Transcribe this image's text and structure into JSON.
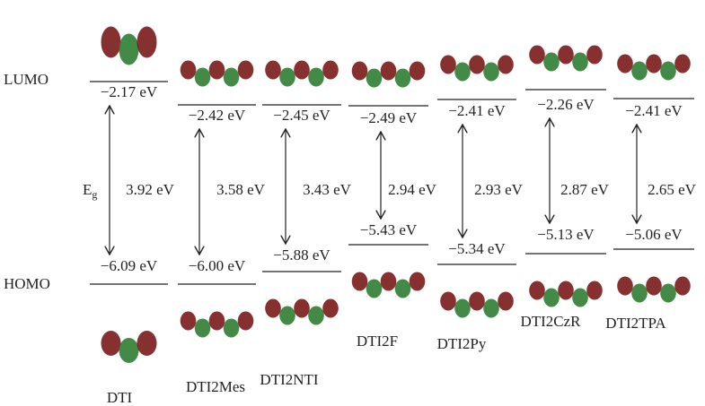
{
  "row_labels": {
    "lumo": "LUMO",
    "homo": "HOMO"
  },
  "gap_label": {
    "main": "E",
    "sub": "g"
  },
  "molecules": [
    {
      "name": "DTI",
      "lumo": "−2.17 eV",
      "homo": "−6.09 eV",
      "gap": "3.92 eV"
    },
    {
      "name": "DTI2Mes",
      "lumo": "−2.42 eV",
      "homo": "−6.00 eV",
      "gap": "3.58 eV"
    },
    {
      "name": "DTI2NTI",
      "lumo": "−2.45 eV",
      "homo": "−5.88 eV",
      "gap": "3.43 eV"
    },
    {
      "name": "DTI2F",
      "lumo": "−2.49 eV",
      "homo": "−5.43 eV",
      "gap": "2.94 eV"
    },
    {
      "name": "DTI2Py",
      "lumo": "−2.41 eV",
      "homo": "−5.34 eV",
      "gap": "2.93 eV"
    },
    {
      "name": "DTI2CzR",
      "lumo": "−2.26 eV",
      "homo": "−5.13 eV",
      "gap": "2.87 eV"
    },
    {
      "name": "DTI2TPA",
      "lumo": "−2.41 eV",
      "homo": "−5.06 eV",
      "gap": "2.65 eV"
    }
  ]
}
